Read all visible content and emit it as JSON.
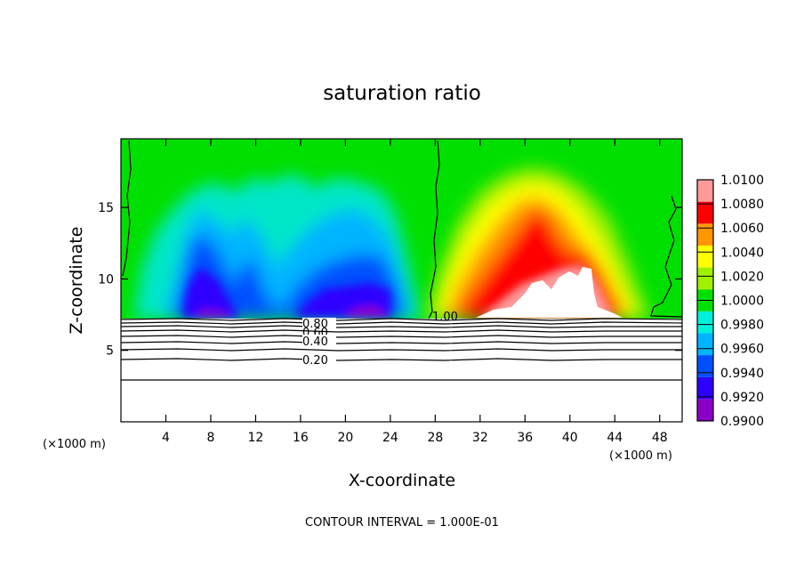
{
  "chart_data": {
    "type": "heatmap",
    "title": "saturation ratio",
    "xlabel": "X-coordinate",
    "ylabel": "Z-coordinate",
    "x_unit": "(×1000 m)",
    "y_unit": "(×1000 m)",
    "xlim": [
      0,
      50
    ],
    "ylim": [
      0,
      19.8
    ],
    "x_ticks": [
      4,
      8,
      12,
      16,
      20,
      24,
      28,
      32,
      36,
      40,
      44,
      48
    ],
    "y_ticks": [
      5,
      10,
      15
    ],
    "colorbar": {
      "levels": [
        0.99,
        0.992,
        0.994,
        0.996,
        0.998,
        1.0,
        1.002,
        1.004,
        1.006,
        1.008,
        1.01
      ],
      "labels": [
        "0.9900",
        "0.9920",
        "0.9940",
        "0.9960",
        "0.9980",
        "1.0000",
        "1.0020",
        "1.0040",
        "1.0060",
        "1.0080",
        "1.0100"
      ],
      "colors": [
        "#8b00c8",
        "#2e00ff",
        "#0050ff",
        "#00b4ff",
        "#00f0dc",
        "#00e000",
        "#a0f000",
        "#ffff00",
        "#ff9600",
        "#ff0000",
        "#ff9a9a"
      ]
    },
    "contour_labels": [
      "0.80",
      "0.60",
      "0.40",
      "0.20",
      "1.00"
    ],
    "contour_levels": [
      0.2,
      0.3,
      0.4,
      0.5,
      0.6,
      0.7,
      0.8,
      0.9,
      1.0
    ],
    "contour_interval_text": "CONTOUR INTERVAL = 1.000E-01"
  }
}
